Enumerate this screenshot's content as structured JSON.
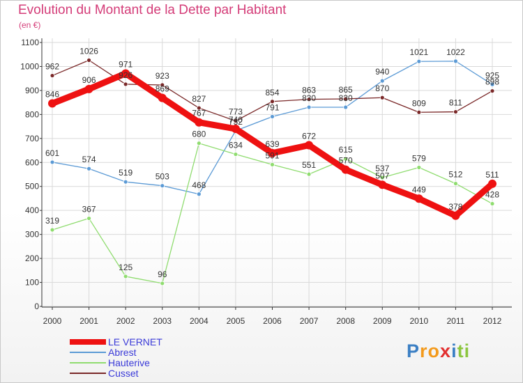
{
  "chart_data": {
    "type": "line",
    "title": "Evolution du Montant de la Dette par Habitant",
    "subtitle": "(en €)",
    "categories": [
      "2000",
      "2001",
      "2002",
      "2003",
      "2004",
      "2005",
      "2006",
      "2007",
      "2008",
      "2009",
      "2010",
      "2011",
      "2012"
    ],
    "ylim": [
      0,
      1100
    ],
    "yticks": [
      0,
      100,
      200,
      300,
      400,
      500,
      600,
      700,
      800,
      900,
      1000,
      1100
    ],
    "grid": true,
    "legend_position": "bottom-left",
    "series": [
      {
        "name": "LE VERNET",
        "color": "#ee1111",
        "values": [
          846,
          906,
          971,
          869,
          767,
          740,
          639,
          672,
          570,
          507,
          449,
          378,
          511
        ]
      },
      {
        "name": "Abrest",
        "color": "#5b9ad5",
        "values": [
          601,
          574,
          519,
          503,
          468,
          732,
          791,
          830,
          830,
          940,
          1021,
          1022,
          925
        ]
      },
      {
        "name": "Hauterive",
        "color": "#8fdc6f",
        "values": [
          319,
          367,
          125,
          96,
          680,
          634,
          591,
          551,
          615,
          537,
          579,
          512,
          428
        ]
      },
      {
        "name": "Cusset",
        "color": "#7a2828",
        "values": [
          962,
          1026,
          926,
          923,
          827,
          773,
          854,
          863,
          865,
          870,
          809,
          811,
          898
        ]
      }
    ]
  },
  "logo": {
    "text": "Proxiti",
    "letters": [
      {
        "ch": "P",
        "color": "#3b7fc4"
      },
      {
        "ch": "r",
        "color": "#f39a1c"
      },
      {
        "ch": "o",
        "color": "#f39a1c"
      },
      {
        "ch": "x",
        "color": "#e22f2f"
      },
      {
        "ch": "i",
        "color": "#3b7fc4"
      },
      {
        "ch": "t",
        "color": "#8cc63f"
      },
      {
        "ch": "i",
        "color": "#8cc63f"
      }
    ]
  }
}
